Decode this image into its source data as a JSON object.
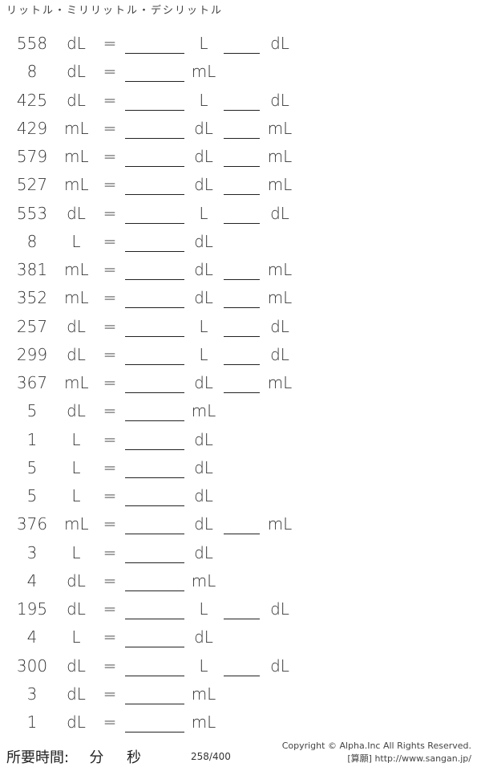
{
  "title": "リットル・ミリリットル・デシリットル",
  "equals": "=",
  "rows": [
    [
      "558",
      "dL",
      "L",
      "dL"
    ],
    [
      "8",
      "dL",
      "mL",
      null
    ],
    [
      "425",
      "dL",
      "L",
      "dL"
    ],
    [
      "429",
      "mL",
      "dL",
      "mL"
    ],
    [
      "579",
      "mL",
      "dL",
      "mL"
    ],
    [
      "527",
      "mL",
      "dL",
      "mL"
    ],
    [
      "553",
      "dL",
      "L",
      "dL"
    ],
    [
      "8",
      "L",
      "dL",
      null
    ],
    [
      "381",
      "mL",
      "dL",
      "mL"
    ],
    [
      "352",
      "mL",
      "dL",
      "mL"
    ],
    [
      "257",
      "dL",
      "L",
      "dL"
    ],
    [
      "299",
      "dL",
      "L",
      "dL"
    ],
    [
      "367",
      "mL",
      "dL",
      "mL"
    ],
    [
      "5",
      "dL",
      "mL",
      null
    ],
    [
      "1",
      "L",
      "dL",
      null
    ],
    [
      "5",
      "L",
      "dL",
      null
    ],
    [
      "5",
      "L",
      "dL",
      null
    ],
    [
      "376",
      "mL",
      "dL",
      "mL"
    ],
    [
      "3",
      "L",
      "dL",
      null
    ],
    [
      "4",
      "dL",
      "mL",
      null
    ],
    [
      "195",
      "dL",
      "L",
      "dL"
    ],
    [
      "4",
      "L",
      "dL",
      null
    ],
    [
      "300",
      "dL",
      "L",
      "dL"
    ],
    [
      "3",
      "dL",
      "mL",
      null
    ],
    [
      "1",
      "dL",
      "mL",
      null
    ]
  ],
  "footer": {
    "time_label": "所要時間:",
    "minutes": "分",
    "seconds": "秒",
    "page": "258/400",
    "copyright": "Copyright © Alpha.Inc All Rights Reserved.",
    "site": "[算願] http://www.sangan.jp/"
  }
}
